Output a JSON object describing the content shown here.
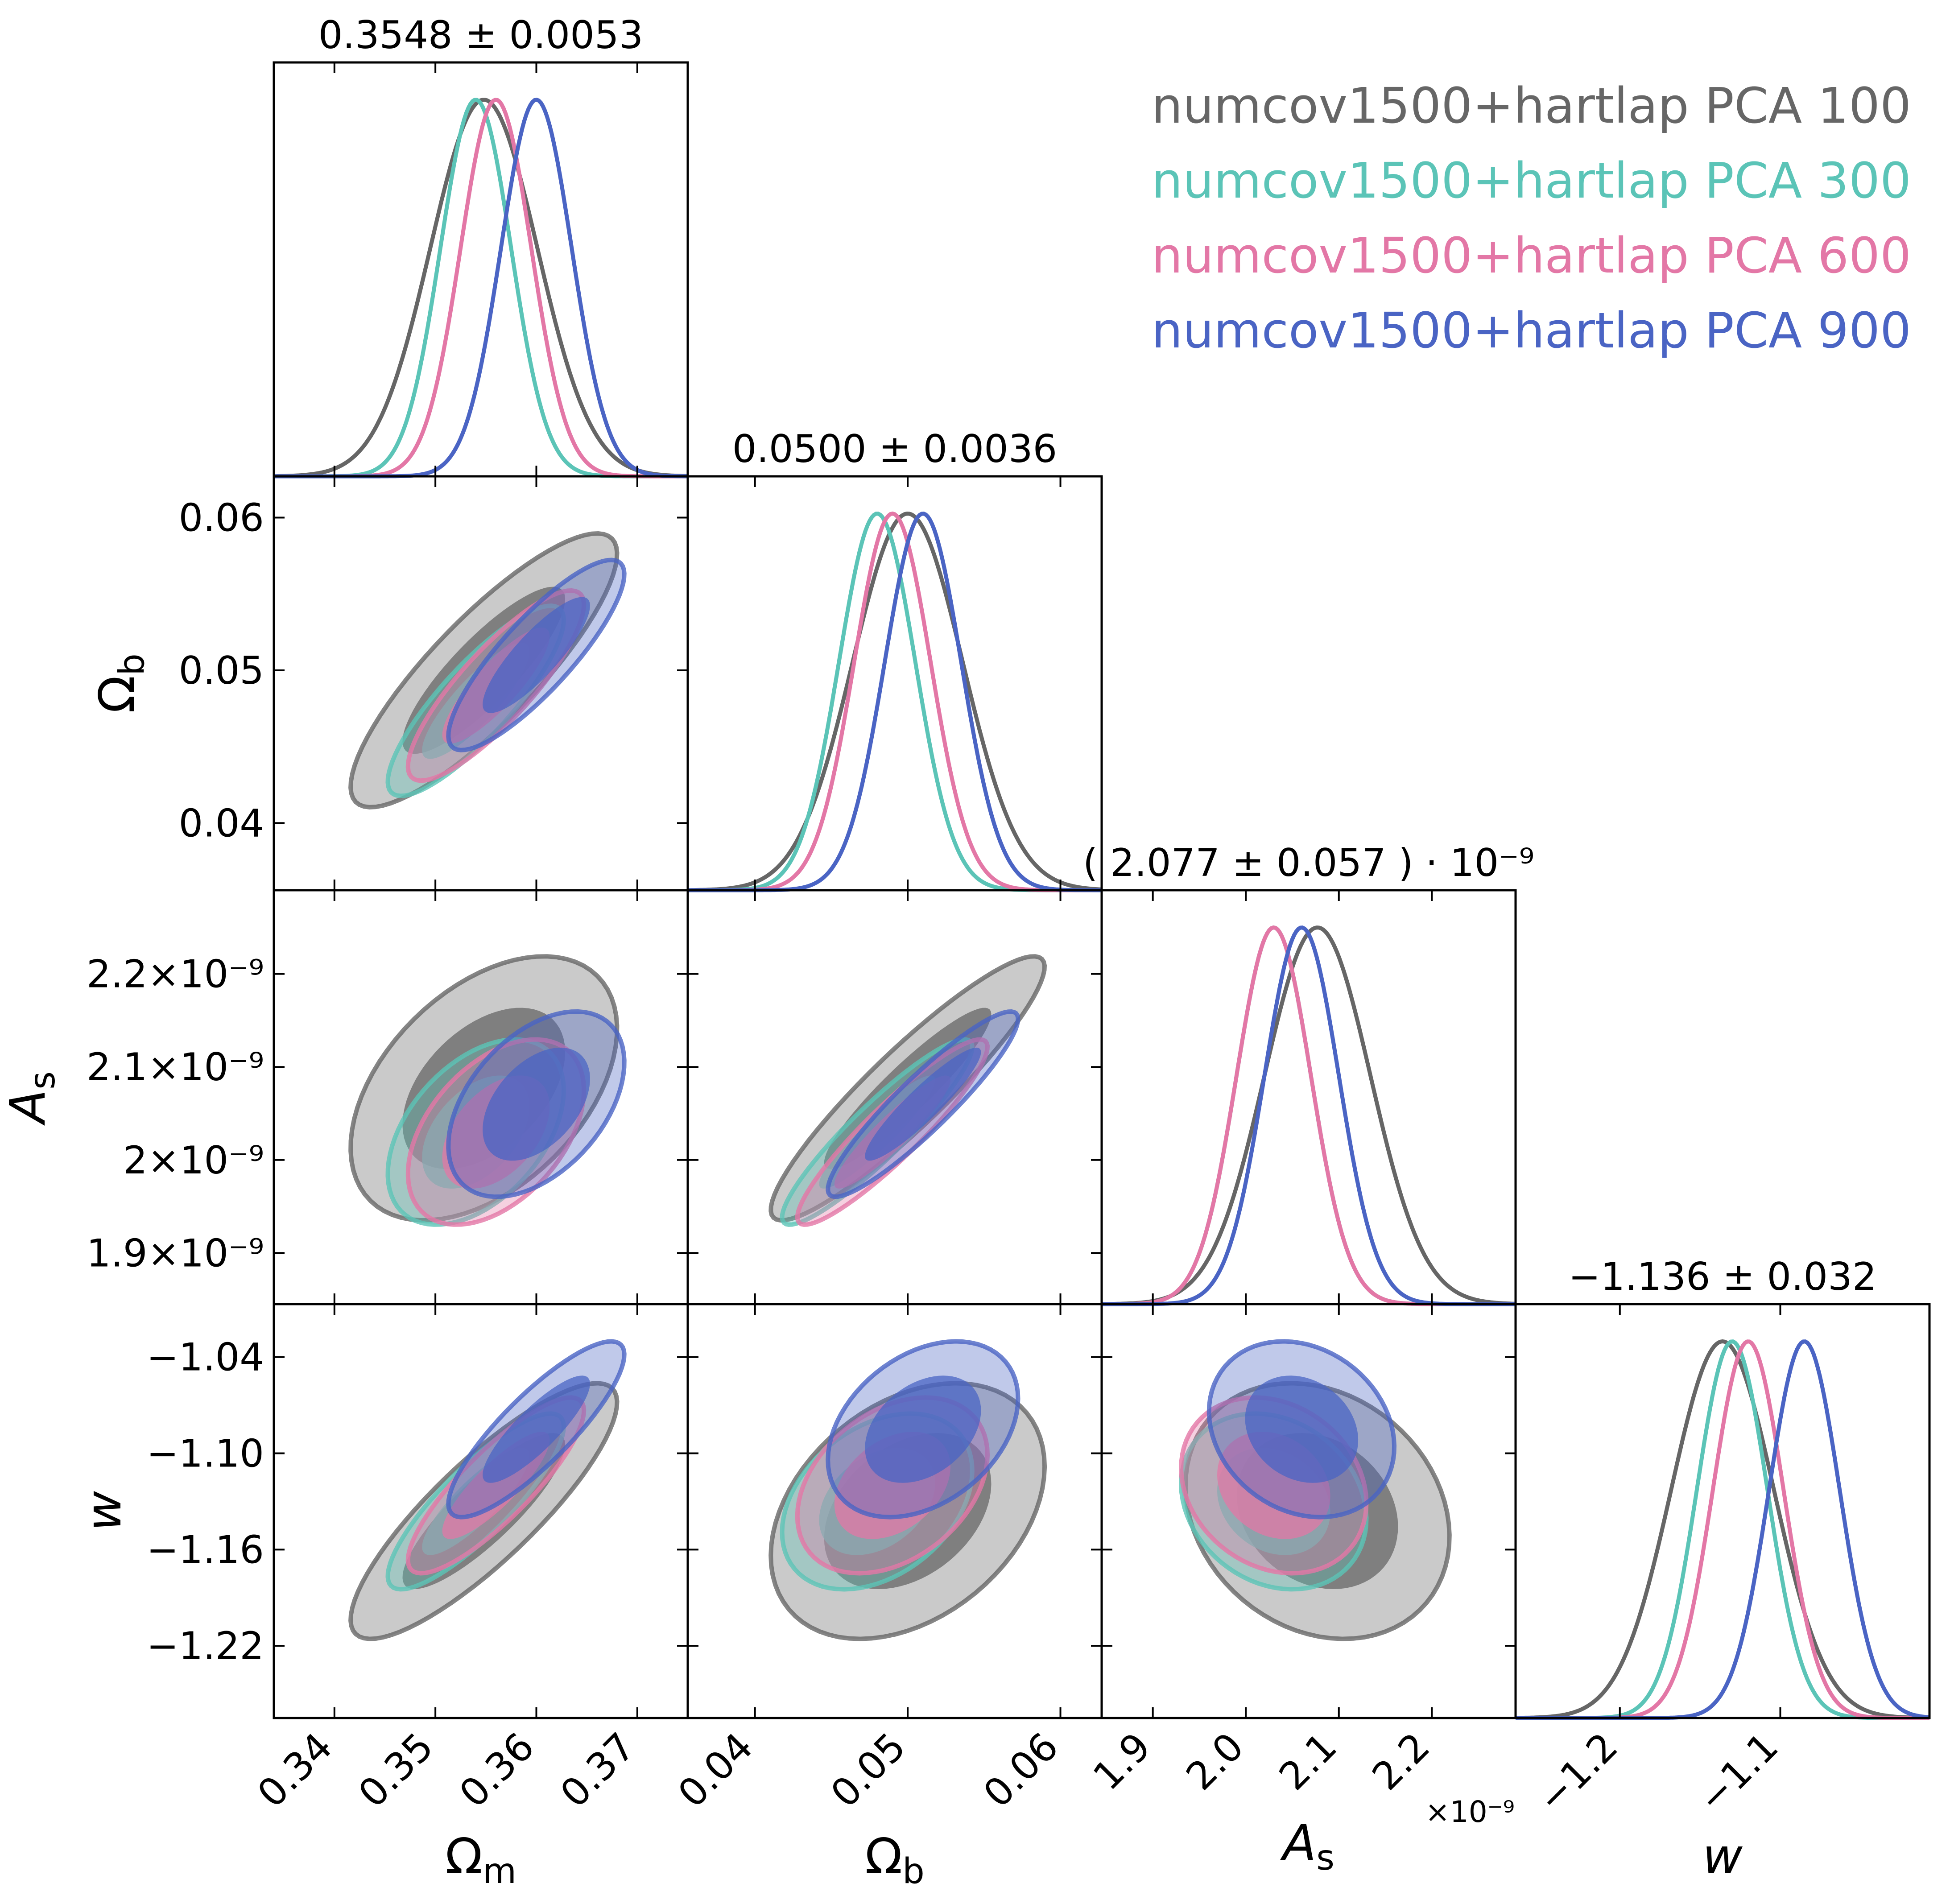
{
  "chart_data": {
    "type": "corner",
    "parameters": [
      {
        "key": "om",
        "label": "Ωm",
        "range": [
          0.334,
          0.375
        ],
        "ticks": [
          0.34,
          0.35,
          0.36,
          0.37
        ],
        "tick_labels": [
          "0.34",
          "0.35",
          "0.36",
          "0.37"
        ],
        "title": "0.3548 ± 0.0053"
      },
      {
        "key": "ob",
        "label": "Ωb",
        "range": [
          0.0356,
          0.0627
        ],
        "ticks": [
          0.04,
          0.05,
          0.06
        ],
        "tick_labels": [
          "0.04",
          "0.05",
          "0.06"
        ],
        "y_tick_labels": [
          "0.04",
          "0.05",
          "0.06"
        ],
        "title": "0.0500 ± 0.0036"
      },
      {
        "key": "As",
        "label": "As",
        "range": [
          1.845e-09,
          2.29e-09
        ],
        "ticks": [
          1.9e-09,
          2e-09,
          2.1e-09,
          2.2e-09
        ],
        "tick_labels": [
          "1.9",
          "2.0",
          "2.1",
          "2.2"
        ],
        "y_tick_labels": [
          "1.9×10⁻⁹",
          "2×10⁻⁹",
          "2.1×10⁻⁹",
          "2.2×10⁻⁹"
        ],
        "offset_label": "×10⁻⁹",
        "title": "( 2.077 ± 0.057 ) · 10⁻⁹"
      },
      {
        "key": "w",
        "label": "w",
        "range": [
          -1.265,
          -1.007
        ],
        "ticks": [
          -1.2,
          -1.1
        ],
        "tick_labels": [
          "−1.2",
          "−1.1"
        ],
        "y_ticks": [
          -1.04,
          -1.1,
          -1.16,
          -1.22
        ],
        "y_tick_labels": [
          "−1.04",
          "−1.10",
          "−1.16",
          "−1.22"
        ],
        "title": "−1.136 ± 0.032"
      }
    ],
    "series": [
      {
        "name": "numcov1500+hartlap PCA 100",
        "color": "#666666",
        "mean": [
          0.3548,
          0.05,
          2.077e-09,
          -1.136
        ],
        "sigma": [
          0.0053,
          0.0036,
          5.7e-11,
          0.032
        ]
      },
      {
        "name": "numcov1500+hartlap PCA 300",
        "color": "#5bc4b7",
        "mean": [
          0.354,
          0.048,
          2.03e-09,
          -1.13
        ],
        "sigma": [
          0.0035,
          0.0025,
          4e-11,
          0.022
        ]
      },
      {
        "name": "numcov1500+hartlap PCA 600",
        "color": "#e377a6",
        "mean": [
          0.356,
          0.049,
          2.03e-09,
          -1.12
        ],
        "sigma": [
          0.0035,
          0.0025,
          4e-11,
          0.022
        ]
      },
      {
        "name": "numcov1500+hartlap PCA 900",
        "color": "#4a64c4",
        "mean": [
          0.36,
          0.051,
          2.06e-09,
          -1.085
        ],
        "sigma": [
          0.0035,
          0.0025,
          4e-11,
          0.022
        ]
      }
    ],
    "correlations": {
      "0-1": 0.85,
      "0-2": 0.45,
      "1-2": 0.92,
      "0-3": 0.85,
      "1-3": 0.35,
      "2-3": -0.2
    },
    "legend_position": "top-right",
    "grid": false
  }
}
